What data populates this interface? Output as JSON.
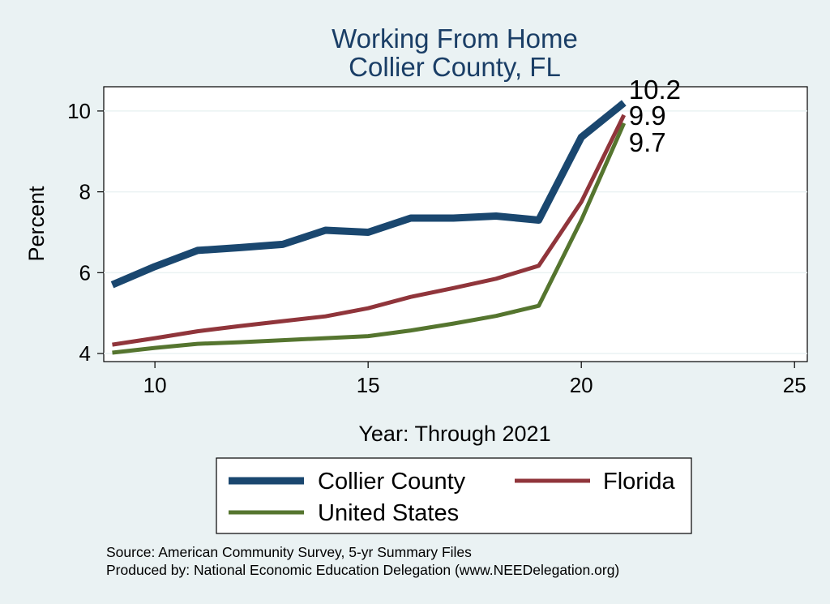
{
  "chart_data": {
    "type": "line",
    "title": [
      "Working From Home",
      "Collier County, FL"
    ],
    "xlabel": "Year: Through 2021",
    "ylabel": "Percent",
    "xlim": [
      8.8,
      25.3
    ],
    "ylim": [
      3.8,
      10.6
    ],
    "xticks": [
      10,
      15,
      20,
      25
    ],
    "yticks": [
      4,
      6,
      8,
      10
    ],
    "grid": true,
    "legend": "bottom",
    "x": [
      9,
      10,
      11,
      12,
      13,
      14,
      15,
      16,
      17,
      18,
      19,
      20,
      21
    ],
    "series": [
      {
        "name": "Collier County",
        "color": "#1a476f",
        "width": 9,
        "values": [
          5.7,
          6.15,
          6.55,
          6.62,
          6.7,
          7.05,
          7.0,
          7.35,
          7.35,
          7.4,
          7.3,
          9.35,
          10.2
        ],
        "end_label": "10.2"
      },
      {
        "name": "Florida",
        "color": "#90353b",
        "width": 5,
        "values": [
          4.22,
          4.38,
          4.55,
          4.68,
          4.8,
          4.92,
          5.12,
          5.4,
          5.62,
          5.85,
          6.17,
          7.75,
          9.9
        ],
        "end_label": "9.9"
      },
      {
        "name": "United States",
        "color": "#55752f",
        "width": 5,
        "values": [
          4.02,
          4.14,
          4.24,
          4.28,
          4.33,
          4.38,
          4.43,
          4.57,
          4.74,
          4.93,
          5.18,
          7.3,
          9.7
        ],
        "end_label": "9.7"
      }
    ],
    "notes": [
      "Source: American Community Survey, 5-yr Summary Files",
      "Produced by: National Economic Education Delegation (www.NEEDelegation.org)"
    ]
  }
}
